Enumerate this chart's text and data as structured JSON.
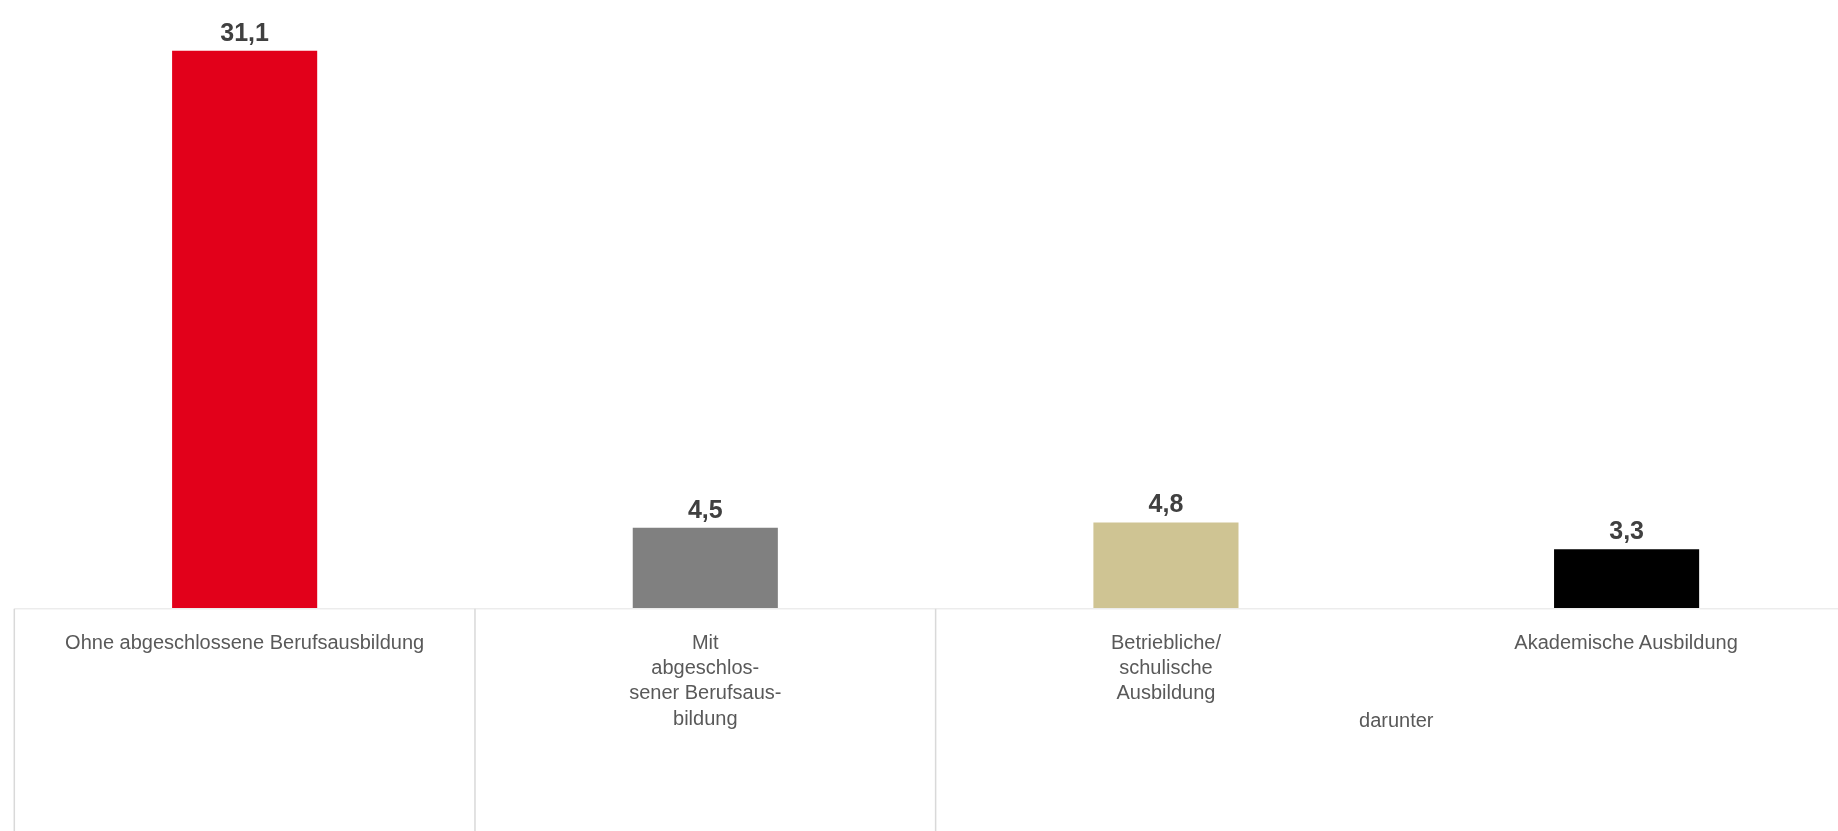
{
  "chart_data": {
    "type": "bar",
    "categories": [
      "Ohne abgeschlossene Berufsausbildung",
      "Mit\nabgeschlos-\nsener Berufsaus-\nbildung",
      "Betriebliche/\nschulische\nAusbildung",
      "Akademische Ausbildung"
    ],
    "values": [
      31.1,
      4.5,
      4.8,
      3.3
    ],
    "colors": [
      "#e2001a",
      "#808080",
      "#cfc493",
      "#000000"
    ],
    "value_labels": [
      "31,1",
      "4,5",
      "4,8",
      "3,3"
    ],
    "annotations": [
      "darunter"
    ],
    "grid": false
  }
}
